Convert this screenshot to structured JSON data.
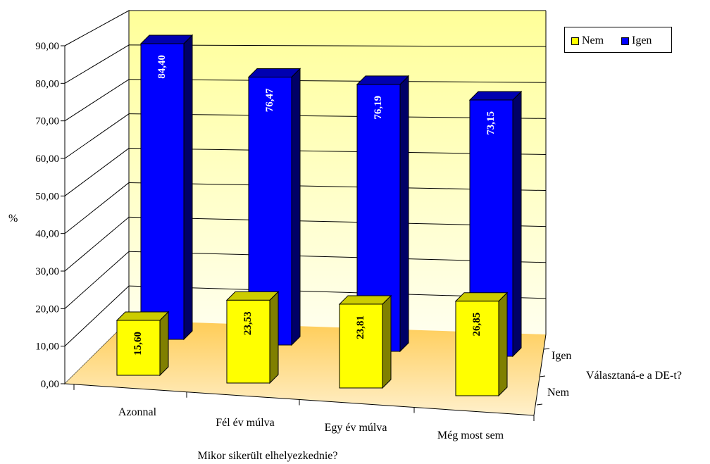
{
  "chart_data": {
    "type": "bar",
    "categories": [
      "Azonnal",
      "Fél év múlva",
      "Egy év múlva",
      "Még most sem"
    ],
    "series": [
      {
        "name": "Nem",
        "values": [
          15.6,
          23.53,
          23.81,
          26.85
        ],
        "color": "#ffff00",
        "labels": [
          "15,60",
          "23,53",
          "23,81",
          "26,85"
        ]
      },
      {
        "name": "Igen",
        "values": [
          84.4,
          76.47,
          76.19,
          73.15
        ],
        "color": "#0000ff",
        "labels": [
          "84,40",
          "76,47",
          "76,19",
          "73,15"
        ]
      }
    ],
    "yticks": [
      "0,00",
      "10,00",
      "20,00",
      "30,00",
      "40,00",
      "50,00",
      "60,00",
      "70,00",
      "80,00",
      "90,00"
    ],
    "ylim": [
      0,
      90
    ],
    "ylabel": "%",
    "xlabel": "Mikor sikerült elhelyezkednie?",
    "zlabel": "Választaná-e a DE-t?",
    "zticks": [
      "Igen",
      "Nem"
    ],
    "grid": true,
    "legend_position": "top-right",
    "colors": {
      "wall": "#ffff99",
      "floor": "#ffcc66"
    }
  }
}
